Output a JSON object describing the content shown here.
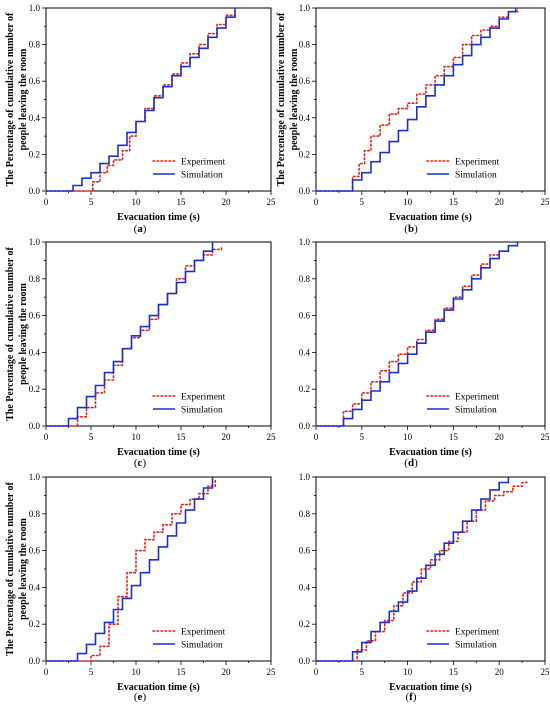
{
  "figure": {
    "ylabel_line1": "The Percentage of cumulative number of",
    "ylabel_line2": "people leaving the room",
    "xlabel": "Evacuation time (s)",
    "legend": [
      "Experiment",
      "Simulation"
    ],
    "colors": {
      "experiment": "#e8211a",
      "simulation": "#1a2fd4"
    }
  },
  "chart_data": [
    {
      "panel": "a",
      "type": "line",
      "title": "",
      "xlabel": "Evacuation time (s)",
      "ylabel": "The Percentage of cumulative number of people leaving the room",
      "xlim": [
        0,
        25
      ],
      "ylim": [
        0,
        1.0
      ],
      "xticks": [
        0,
        5,
        10,
        15,
        20,
        25
      ],
      "yticks": [
        0.0,
        0.2,
        0.4,
        0.6,
        0.8,
        1.0
      ],
      "series": [
        {
          "name": "Experiment",
          "style": "dotted",
          "x": [
            4.5,
            5.2,
            6.0,
            6.8,
            7.5,
            8.5,
            9.3,
            10.0,
            11.0,
            12.0,
            13.0,
            14.0,
            15.0,
            16.0,
            17.0,
            18.0,
            19.0,
            20.0,
            21.0
          ],
          "y": [
            0.0,
            0.05,
            0.1,
            0.14,
            0.17,
            0.22,
            0.3,
            0.38,
            0.45,
            0.52,
            0.58,
            0.64,
            0.7,
            0.75,
            0.8,
            0.86,
            0.91,
            0.96,
            0.98
          ]
        },
        {
          "name": "Simulation",
          "style": "solid",
          "x": [
            2.5,
            3.0,
            4.0,
            5.0,
            6.0,
            7.0,
            8.0,
            9.0,
            10.0,
            11.0,
            12.0,
            13.0,
            14.0,
            15.0,
            16.0,
            17.0,
            18.0,
            19.0,
            20.0,
            21.0
          ],
          "y": [
            0.0,
            0.03,
            0.07,
            0.1,
            0.15,
            0.19,
            0.25,
            0.32,
            0.38,
            0.44,
            0.51,
            0.57,
            0.63,
            0.68,
            0.73,
            0.78,
            0.84,
            0.89,
            0.95,
            1.0
          ]
        }
      ]
    },
    {
      "panel": "b",
      "type": "line",
      "title": "",
      "xlabel": "Evacuation time (s)",
      "ylabel": "",
      "xlim": [
        0,
        25
      ],
      "ylim": [
        0,
        1.0
      ],
      "xticks": [
        0,
        5,
        10,
        15,
        20,
        25
      ],
      "yticks": [
        0.0,
        0.2,
        0.4,
        0.6,
        0.8,
        1.0
      ],
      "series": [
        {
          "name": "Experiment",
          "style": "dotted",
          "x": [
            3.5,
            4.0,
            4.7,
            5.3,
            6.0,
            7.0,
            8.0,
            9.0,
            10.0,
            11.0,
            12.0,
            13.0,
            14.0,
            15.0,
            16.0,
            17.0,
            18.0,
            19.0,
            20.0,
            21.0,
            22.0
          ],
          "y": [
            0.0,
            0.08,
            0.15,
            0.22,
            0.3,
            0.36,
            0.42,
            0.45,
            0.48,
            0.53,
            0.58,
            0.63,
            0.68,
            0.73,
            0.8,
            0.85,
            0.88,
            0.9,
            0.95,
            0.98,
            1.0
          ]
        },
        {
          "name": "Simulation",
          "style": "solid",
          "x": [
            3.0,
            4.0,
            5.0,
            6.0,
            7.0,
            8.0,
            9.0,
            10.0,
            11.0,
            12.0,
            13.0,
            14.0,
            15.0,
            16.0,
            17.0,
            18.0,
            19.0,
            20.0,
            21.0,
            21.8
          ],
          "y": [
            0.0,
            0.06,
            0.1,
            0.16,
            0.21,
            0.27,
            0.33,
            0.39,
            0.46,
            0.52,
            0.58,
            0.63,
            0.69,
            0.74,
            0.8,
            0.84,
            0.89,
            0.94,
            0.98,
            1.0
          ]
        }
      ]
    },
    {
      "panel": "c",
      "type": "line",
      "title": "",
      "xlabel": "Evacuation time (s)",
      "ylabel": "The Percentage of cumulative number of people leaving the room",
      "xlim": [
        0,
        25
      ],
      "ylim": [
        0,
        1.0
      ],
      "xticks": [
        0,
        5,
        10,
        15,
        20,
        25
      ],
      "yticks": [
        0.0,
        0.2,
        0.4,
        0.6,
        0.8,
        1.0
      ],
      "series": [
        {
          "name": "Experiment",
          "style": "dotted",
          "x": [
            3.0,
            3.5,
            4.5,
            5.5,
            6.5,
            7.5,
            8.5,
            9.5,
            10.5,
            11.5,
            12.5,
            13.5,
            14.5,
            15.5,
            16.5,
            17.5,
            18.5,
            19.5
          ],
          "y": [
            0.0,
            0.05,
            0.1,
            0.18,
            0.25,
            0.33,
            0.42,
            0.48,
            0.52,
            0.58,
            0.66,
            0.72,
            0.8,
            0.87,
            0.9,
            0.93,
            0.96,
            0.98
          ]
        },
        {
          "name": "Simulation",
          "style": "solid",
          "x": [
            2.0,
            2.5,
            3.5,
            4.5,
            5.5,
            6.5,
            7.5,
            8.5,
            9.5,
            10.5,
            11.5,
            12.5,
            13.5,
            14.5,
            15.5,
            16.5,
            17.5,
            18.5
          ],
          "y": [
            0.0,
            0.04,
            0.1,
            0.16,
            0.22,
            0.29,
            0.35,
            0.42,
            0.49,
            0.54,
            0.6,
            0.66,
            0.72,
            0.78,
            0.84,
            0.9,
            0.95,
            1.0
          ]
        }
      ]
    },
    {
      "panel": "d",
      "type": "line",
      "title": "",
      "xlabel": "Evacuation time (s)",
      "ylabel": "",
      "xlim": [
        0,
        25
      ],
      "ylim": [
        0,
        1.0
      ],
      "xticks": [
        0,
        5,
        10,
        15,
        20,
        25
      ],
      "yticks": [
        0.0,
        0.2,
        0.4,
        0.6,
        0.8,
        1.0
      ],
      "series": [
        {
          "name": "Experiment",
          "style": "dotted",
          "x": [
            2.5,
            3.0,
            4.0,
            5.0,
            6.0,
            7.0,
            8.0,
            9.0,
            10.0,
            11.0,
            12.0,
            13.0,
            14.0,
            15.0,
            16.0,
            17.0,
            18.0,
            19.0,
            20.0
          ],
          "y": [
            0.0,
            0.08,
            0.12,
            0.18,
            0.24,
            0.3,
            0.35,
            0.39,
            0.43,
            0.47,
            0.52,
            0.58,
            0.64,
            0.7,
            0.76,
            0.82,
            0.88,
            0.93,
            0.96
          ]
        },
        {
          "name": "Simulation",
          "style": "solid",
          "x": [
            2.0,
            3.0,
            4.0,
            5.0,
            6.0,
            7.0,
            8.0,
            9.0,
            10.0,
            11.0,
            12.0,
            13.0,
            14.0,
            15.0,
            16.0,
            17.0,
            18.0,
            19.0,
            20.0,
            21.0,
            22.0
          ],
          "y": [
            0.0,
            0.04,
            0.09,
            0.14,
            0.19,
            0.24,
            0.29,
            0.34,
            0.39,
            0.45,
            0.51,
            0.57,
            0.63,
            0.69,
            0.74,
            0.8,
            0.86,
            0.91,
            0.95,
            0.98,
            1.0
          ]
        }
      ]
    },
    {
      "panel": "e",
      "type": "line",
      "title": "",
      "xlabel": "Evacuation time (s)",
      "ylabel": "The Percentage of cumulative number of people leaving the room",
      "xlim": [
        0,
        25
      ],
      "ylim": [
        0,
        1.0
      ],
      "xticks": [
        0,
        5,
        10,
        15,
        20,
        25
      ],
      "yticks": [
        0.0,
        0.2,
        0.4,
        0.6,
        0.8,
        1.0
      ],
      "series": [
        {
          "name": "Experiment",
          "style": "dotted",
          "x": [
            4.0,
            5.0,
            6.0,
            7.0,
            8.0,
            9.0,
            10.0,
            11.0,
            12.0,
            13.0,
            14.0,
            15.0,
            16.0,
            17.0,
            18.0,
            18.8
          ],
          "y": [
            0.0,
            0.03,
            0.08,
            0.2,
            0.35,
            0.48,
            0.6,
            0.66,
            0.7,
            0.74,
            0.8,
            0.85,
            0.88,
            0.91,
            0.95,
            0.99
          ]
        },
        {
          "name": "Simulation",
          "style": "solid",
          "x": [
            2.5,
            3.5,
            4.5,
            5.5,
            6.5,
            7.5,
            8.5,
            9.5,
            10.5,
            11.5,
            12.5,
            13.5,
            14.5,
            15.5,
            16.5,
            17.5,
            18.5
          ],
          "y": [
            0.0,
            0.04,
            0.09,
            0.15,
            0.21,
            0.28,
            0.34,
            0.41,
            0.48,
            0.55,
            0.62,
            0.68,
            0.75,
            0.82,
            0.88,
            0.94,
            1.0
          ]
        }
      ]
    },
    {
      "panel": "f",
      "type": "line",
      "title": "",
      "xlabel": "Evacuation time (s)",
      "ylabel": "",
      "xlim": [
        0,
        25
      ],
      "ylim": [
        0,
        1.0
      ],
      "xticks": [
        0,
        5,
        10,
        15,
        20,
        25
      ],
      "yticks": [
        0.0,
        0.2,
        0.4,
        0.6,
        0.8,
        1.0
      ],
      "series": [
        {
          "name": "Experiment",
          "style": "dotted",
          "x": [
            3.5,
            4.5,
            5.5,
            6.5,
            7.5,
            8.5,
            9.5,
            10.5,
            11.5,
            12.5,
            13.5,
            14.5,
            15.5,
            16.5,
            17.5,
            18.5,
            19.5,
            20.5,
            21.5,
            22.5,
            23.0
          ],
          "y": [
            0.0,
            0.06,
            0.11,
            0.16,
            0.22,
            0.3,
            0.37,
            0.43,
            0.5,
            0.55,
            0.6,
            0.65,
            0.7,
            0.76,
            0.82,
            0.87,
            0.9,
            0.92,
            0.95,
            0.97,
            0.98
          ]
        },
        {
          "name": "Simulation",
          "style": "solid",
          "x": [
            3.0,
            4.0,
            5.0,
            6.0,
            7.0,
            8.0,
            9.0,
            10.0,
            11.0,
            12.0,
            13.0,
            14.0,
            15.0,
            16.0,
            17.0,
            18.0,
            19.0,
            20.0,
            21.0
          ],
          "y": [
            0.0,
            0.05,
            0.1,
            0.16,
            0.21,
            0.27,
            0.32,
            0.38,
            0.45,
            0.52,
            0.58,
            0.64,
            0.7,
            0.76,
            0.82,
            0.88,
            0.93,
            0.97,
            1.0
          ]
        }
      ]
    }
  ]
}
